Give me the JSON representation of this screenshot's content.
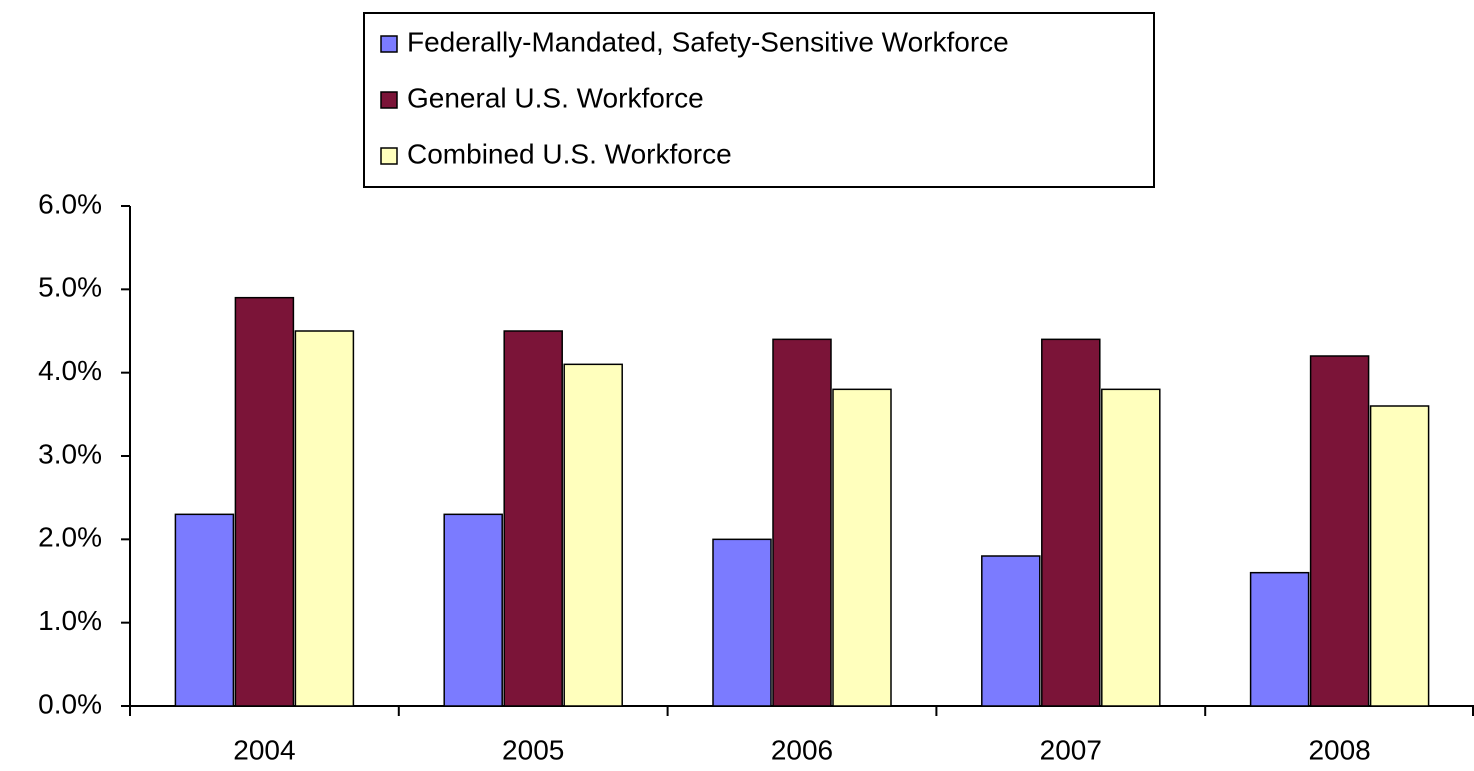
{
  "chart_data": {
    "type": "bar",
    "categories": [
      "2004",
      "2005",
      "2006",
      "2007",
      "2008"
    ],
    "series": [
      {
        "name": "Federally-Mandated, Safety-Sensitive Workforce",
        "color": "#7b7bff",
        "values": [
          2.3,
          2.3,
          2.0,
          1.8,
          1.6
        ]
      },
      {
        "name": "General U.S. Workforce",
        "color": "#7b1438",
        "values": [
          4.9,
          4.5,
          4.4,
          4.4,
          4.2
        ]
      },
      {
        "name": "Combined U.S. Workforce",
        "color": "#ffffbd",
        "values": [
          4.5,
          4.1,
          3.8,
          3.8,
          3.6
        ]
      }
    ],
    "ylim": [
      0,
      6
    ],
    "yticks": [
      {
        "value": 0,
        "label": "0.0%"
      },
      {
        "value": 1,
        "label": "1.0%"
      },
      {
        "value": 2,
        "label": "2.0%"
      },
      {
        "value": 3,
        "label": "3.0%"
      },
      {
        "value": 4,
        "label": "4.0%"
      },
      {
        "value": 5,
        "label": "5.0%"
      },
      {
        "value": 6,
        "label": "6.0%"
      }
    ],
    "grid": false,
    "legend": "top"
  }
}
